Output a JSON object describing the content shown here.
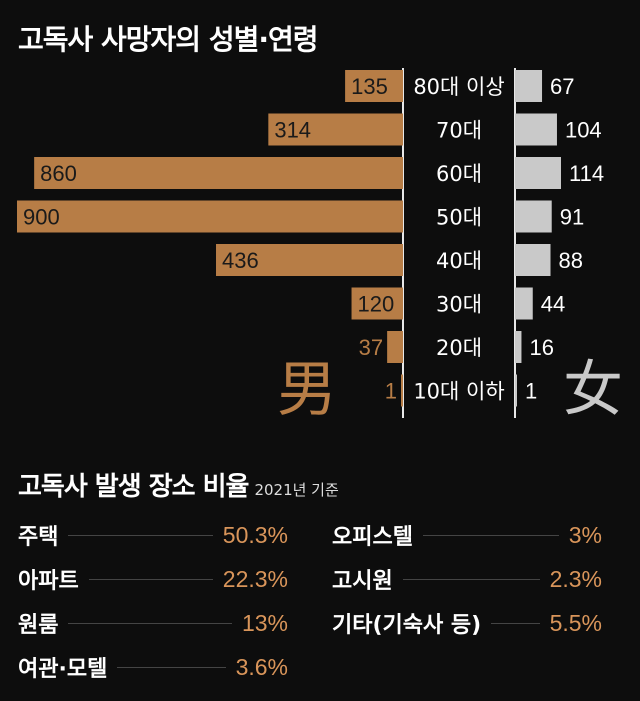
{
  "title": "고독사 사망자의 성별·연령",
  "glyphs": {
    "male": "男",
    "female": "女"
  },
  "colors": {
    "male": "#b77d46",
    "female": "#c9c9c9",
    "value_text": "#d9955a"
  },
  "chart_data": {
    "type": "bar",
    "orientation": "horizontal",
    "categories": [
      "80대 이상",
      "70대",
      "60대",
      "50대",
      "40대",
      "30대",
      "20대",
      "10대 이하"
    ],
    "series": [
      {
        "name": "男",
        "values": [
          135,
          314,
          860,
          900,
          436,
          120,
          37,
          1
        ]
      },
      {
        "name": "女",
        "values": [
          67,
          104,
          114,
          91,
          88,
          44,
          16,
          1
        ]
      }
    ],
    "title": "고독사 사망자의 성별·연령"
  },
  "places": {
    "title": "고독사 발생 장소 비율",
    "note": "2021년 기준",
    "left": [
      {
        "name": "주택",
        "value": "50.3%"
      },
      {
        "name": "아파트",
        "value": "22.3%"
      },
      {
        "name": "원룸",
        "value": "13%"
      },
      {
        "name": "여관·모텔",
        "value": "3.6%"
      }
    ],
    "right": [
      {
        "name": "오피스텔",
        "value": "3%"
      },
      {
        "name": "고시원",
        "value": "2.3%"
      },
      {
        "name": "기타(기숙사 등)",
        "value": "5.5%"
      }
    ]
  }
}
